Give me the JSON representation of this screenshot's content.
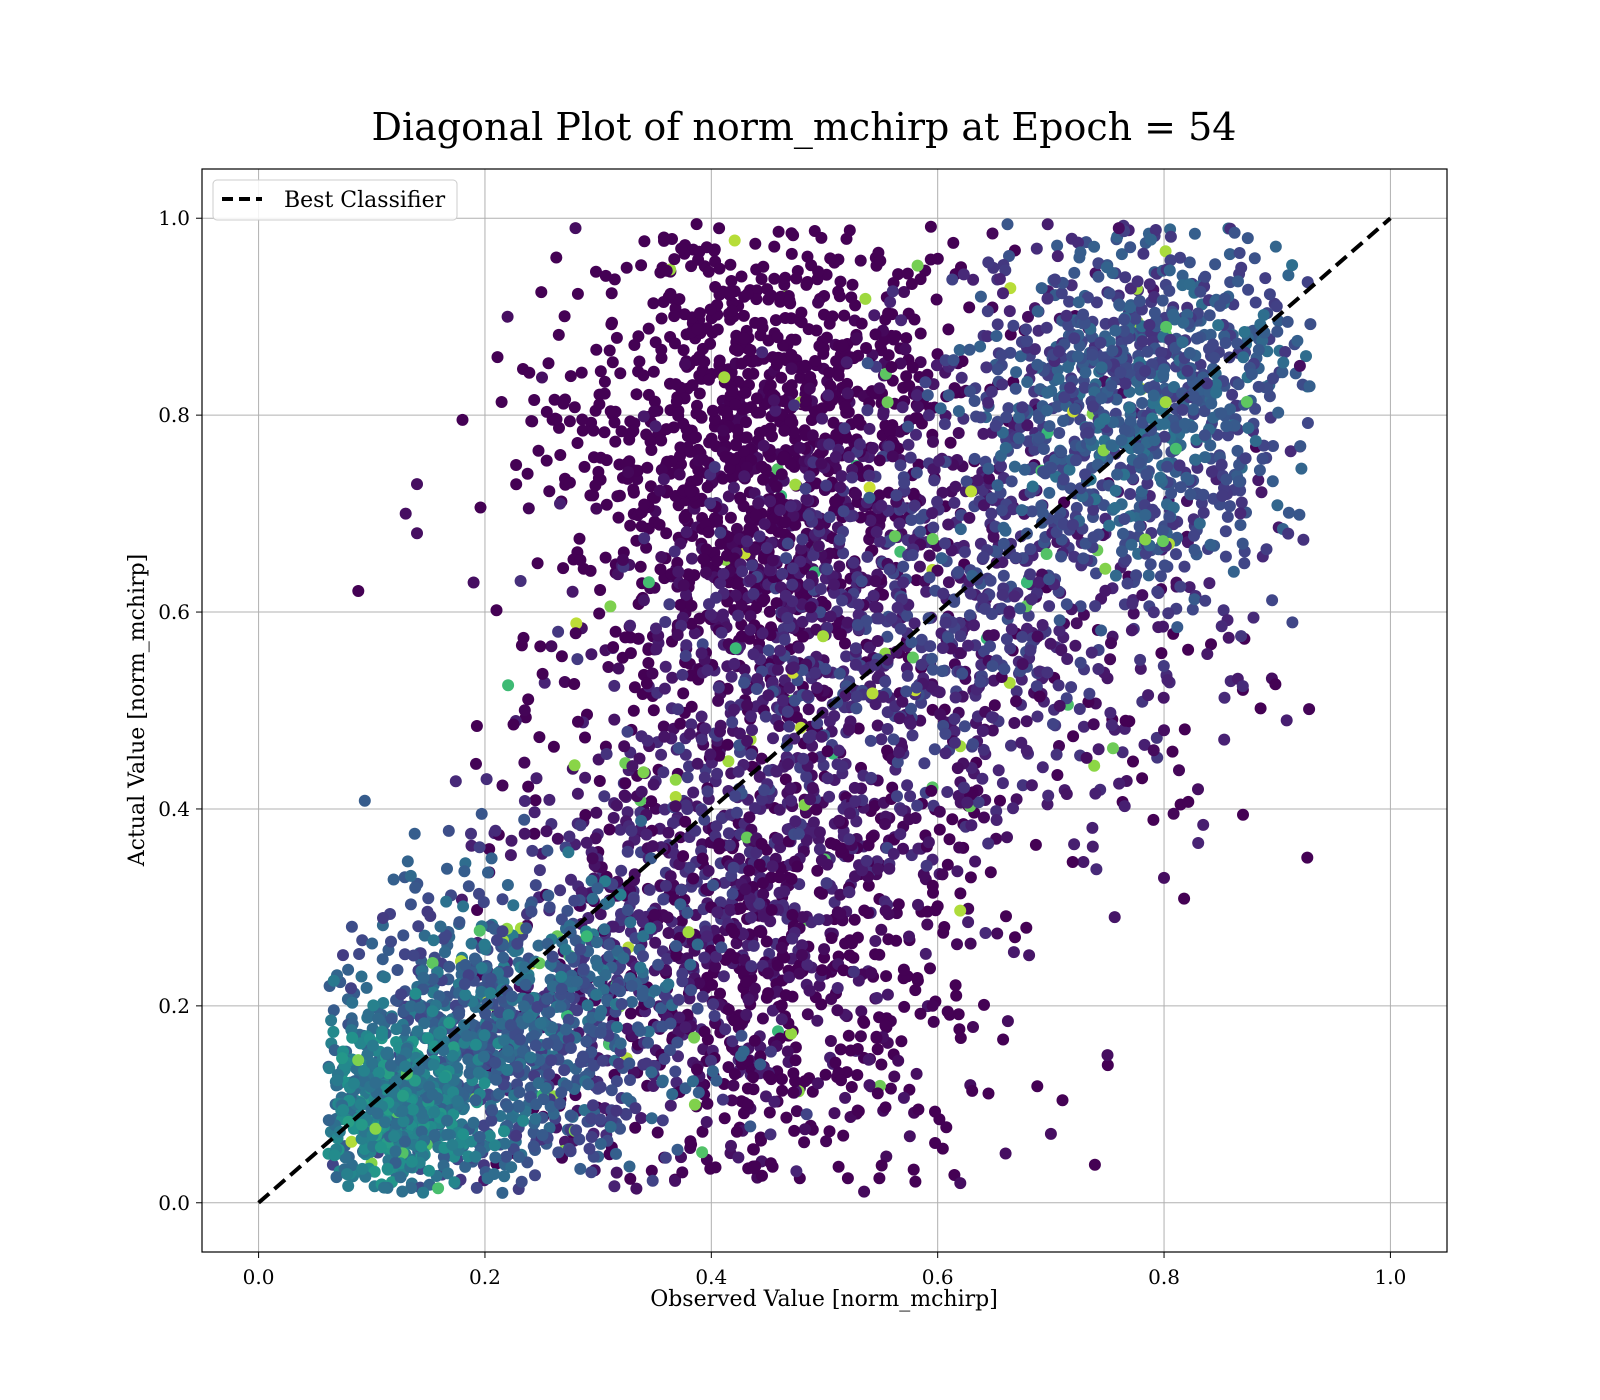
{
  "chart_data": {
    "type": "scatter",
    "title": "Diagonal Plot of norm_mchirp at Epoch = 54",
    "xlabel": "Observed Value [norm_mchirp]",
    "ylabel": "Actual Value [norm_mchirp]",
    "xlim": [
      -0.05,
      1.05
    ],
    "ylim": [
      -0.05,
      1.05
    ],
    "x_ticks": [
      "0.0",
      "0.2",
      "0.4",
      "0.6",
      "0.8",
      "1.0"
    ],
    "y_ticks": [
      "0.0",
      "0.2",
      "0.4",
      "0.6",
      "0.8",
      "1.0"
    ],
    "grid": true,
    "legend_position": "top-left",
    "colormap": "viridis",
    "colors": {
      "viridis_dark": "#440154",
      "viridis_purple": "#472c7a",
      "viridis_blue": "#3b528b",
      "viridis_teal": "#21918c",
      "viridis_green": "#5ec962",
      "viridis_yellow": "#fde725",
      "line": "#000000",
      "grid": "#b0b0b0"
    },
    "series": [
      {
        "name": "Best Classifier",
        "kind": "line",
        "style": "dashed",
        "color": "#000000",
        "x": [
          0.0,
          1.0
        ],
        "y": [
          0.0,
          1.0
        ]
      }
    ],
    "point_clusters": [
      {
        "x_center": 0.45,
        "y_center": 0.74,
        "x_spread": 0.09,
        "y_spread": 0.14,
        "density": 1.0,
        "color_level": 0.05
      },
      {
        "x_center": 0.42,
        "y_center": 0.28,
        "x_spread": 0.1,
        "y_spread": 0.14,
        "density": 1.0,
        "color_level": 0.12
      },
      {
        "x_center": 0.6,
        "y_center": 0.6,
        "x_spread": 0.12,
        "y_spread": 0.12,
        "density": 0.8,
        "color_level": 0.2
      },
      {
        "x_center": 0.78,
        "y_center": 0.82,
        "x_spread": 0.08,
        "y_spread": 0.09,
        "density": 0.7,
        "color_level": 0.35
      },
      {
        "x_center": 0.22,
        "y_center": 0.17,
        "x_spread": 0.08,
        "y_spread": 0.08,
        "density": 0.7,
        "color_level": 0.4
      },
      {
        "x_center": 0.12,
        "y_center": 0.1,
        "x_spread": 0.04,
        "y_spread": 0.04,
        "density": 0.4,
        "color_level": 0.55
      }
    ],
    "outlier_points": [
      {
        "x": 0.13,
        "y": 0.7
      },
      {
        "x": 0.14,
        "y": 0.73
      },
      {
        "x": 0.14,
        "y": 0.68
      },
      {
        "x": 0.22,
        "y": 0.9
      },
      {
        "x": 0.28,
        "y": 0.99
      },
      {
        "x": 0.19,
        "y": 0.63
      },
      {
        "x": 0.83,
        "y": 0.42
      },
      {
        "x": 0.8,
        "y": 0.33
      },
      {
        "x": 0.8,
        "y": 0.48
      },
      {
        "x": 0.92,
        "y": 0.85
      },
      {
        "x": 0.76,
        "y": 0.99
      },
      {
        "x": 0.62,
        "y": 0.02
      },
      {
        "x": 0.66,
        "y": 0.05
      },
      {
        "x": 0.7,
        "y": 0.07
      },
      {
        "x": 0.75,
        "y": 0.15
      }
    ]
  }
}
